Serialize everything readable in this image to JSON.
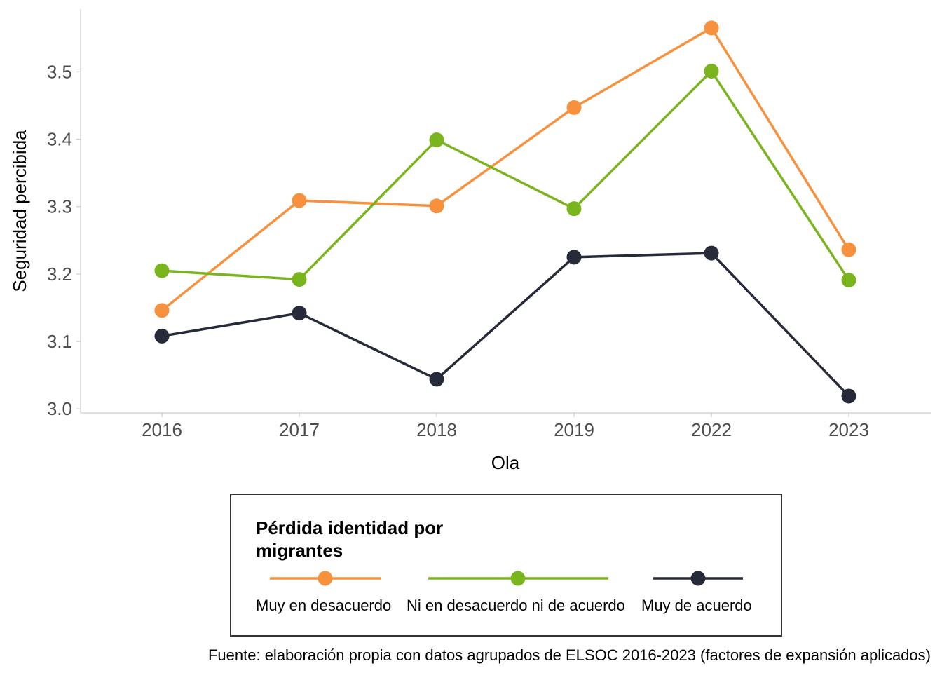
{
  "chart_data": {
    "type": "line",
    "categories": [
      "2016",
      "2017",
      "2018",
      "2019",
      "2022",
      "2023"
    ],
    "series": [
      {
        "name": "Muy en desacuerdo",
        "color": "#F7913D",
        "values": [
          3.146,
          3.309,
          3.301,
          3.447,
          3.565,
          3.236
        ]
      },
      {
        "name": "Ni en desacuerdo ni de acuerdo",
        "color": "#7AB51D",
        "values": [
          3.205,
          3.192,
          3.399,
          3.297,
          3.501,
          3.191
        ]
      },
      {
        "name": "Muy de acuerdo",
        "color": "#272A38",
        "values": [
          3.108,
          3.142,
          3.044,
          3.225,
          3.231,
          3.019
        ]
      }
    ],
    "xlabel": "Ola",
    "ylabel": "Seguridad percibida",
    "ylim": [
      2.994,
      3.593
    ],
    "yticks": [
      3.0,
      3.1,
      3.2,
      3.3,
      3.4,
      3.5
    ],
    "ytick_labels": [
      "3.0",
      "3.1",
      "3.2",
      "3.3",
      "3.4",
      "3.5"
    ],
    "legend_title_lines": [
      "Pérdida identidad por",
      "migrantes"
    ],
    "legend_position": "bottom",
    "caption": "Fuente: elaboración propia con datos agrupados de ELSOC 2016-2023 (factores de expansión aplicados)",
    "grid": false
  }
}
